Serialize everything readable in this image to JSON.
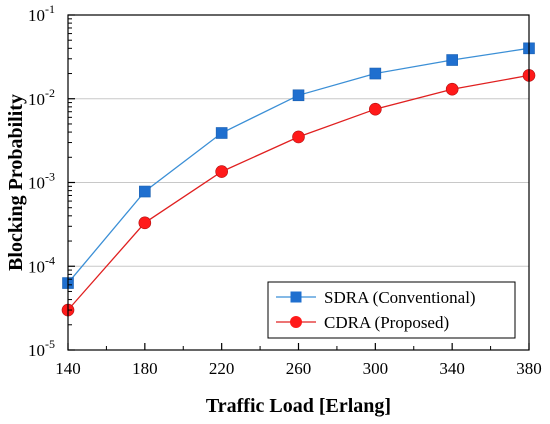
{
  "chart_data": {
    "type": "line",
    "title": "",
    "xlabel": "Traffic Load [Erlang]",
    "ylabel": "Blocking Probability",
    "x": [
      140,
      180,
      220,
      260,
      300,
      340,
      380
    ],
    "xlim": [
      140,
      380
    ],
    "xticks": [
      "140",
      "180",
      "220",
      "260",
      "300",
      "340",
      "380"
    ],
    "yscale": "log",
    "ylim": [
      1e-05,
      0.1
    ],
    "yticks": [
      {
        "value": 1e-05,
        "base": "10",
        "exp": "-5"
      },
      {
        "value": 0.0001,
        "base": "10",
        "exp": "-4"
      },
      {
        "value": 0.001,
        "base": "10",
        "exp": "-3"
      },
      {
        "value": 0.01,
        "base": "10",
        "exp": "-2"
      },
      {
        "value": 0.1,
        "base": "10",
        "exp": "-1"
      }
    ],
    "grid": "horizontal",
    "legend_position": "bottom-right",
    "series": [
      {
        "name": "SDRA (Conventional)",
        "marker": "square",
        "color": "#1f6fcf",
        "line_color": "#3b8fd6",
        "values": [
          6.3e-05,
          0.00078,
          0.0039,
          0.011,
          0.02,
          0.029,
          0.04
        ]
      },
      {
        "name": "CDRA (Proposed)",
        "marker": "circle",
        "color": "#ff1a1a",
        "line_color": "#e02020",
        "values": [
          3e-05,
          0.00033,
          0.00135,
          0.0035,
          0.0075,
          0.013,
          0.019
        ]
      }
    ]
  }
}
